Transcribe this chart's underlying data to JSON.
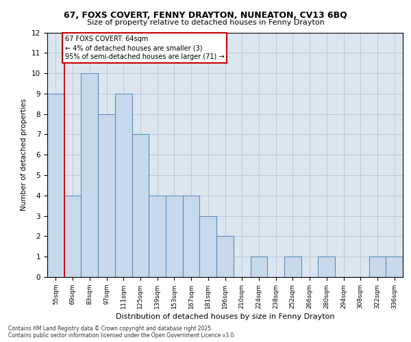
{
  "title_line1": "67, FOXS COVERT, FENNY DRAYTON, NUNEATON, CV13 6BQ",
  "title_line2": "Size of property relative to detached houses in Fenny Drayton",
  "xlabel": "Distribution of detached houses by size in Fenny Drayton",
  "ylabel": "Number of detached properties",
  "categories": [
    "55sqm",
    "69sqm",
    "83sqm",
    "97sqm",
    "111sqm",
    "125sqm",
    "139sqm",
    "153sqm",
    "167sqm",
    "181sqm",
    "196sqm",
    "210sqm",
    "224sqm",
    "238sqm",
    "252sqm",
    "266sqm",
    "280sqm",
    "294sqm",
    "308sqm",
    "322sqm",
    "336sqm"
  ],
  "values": [
    9,
    4,
    10,
    8,
    9,
    7,
    4,
    4,
    4,
    3,
    2,
    0,
    1,
    0,
    1,
    0,
    1,
    0,
    0,
    1,
    1
  ],
  "bar_color": "#c9d9ec",
  "bar_edge_color": "#5b8db8",
  "grid_color": "#c0c8d8",
  "background_color": "#dce6f1",
  "annotation_line1": "67 FOXS COVERT: 64sqm",
  "annotation_line2": "← 4% of detached houses are smaller (3)",
  "annotation_line3": "95% of semi-detached houses are larger (71) →",
  "annotation_box_edge_color": "#cc0000",
  "annotation_vline_color": "#cc0000",
  "annotation_vline_x": 0.5,
  "ylim": [
    0,
    12
  ],
  "yticks": [
    0,
    1,
    2,
    3,
    4,
    5,
    6,
    7,
    8,
    9,
    10,
    11,
    12
  ],
  "footnote": "Contains HM Land Registry data © Crown copyright and database right 2025.\nContains public sector information licensed under the Open Government Licence v3.0."
}
